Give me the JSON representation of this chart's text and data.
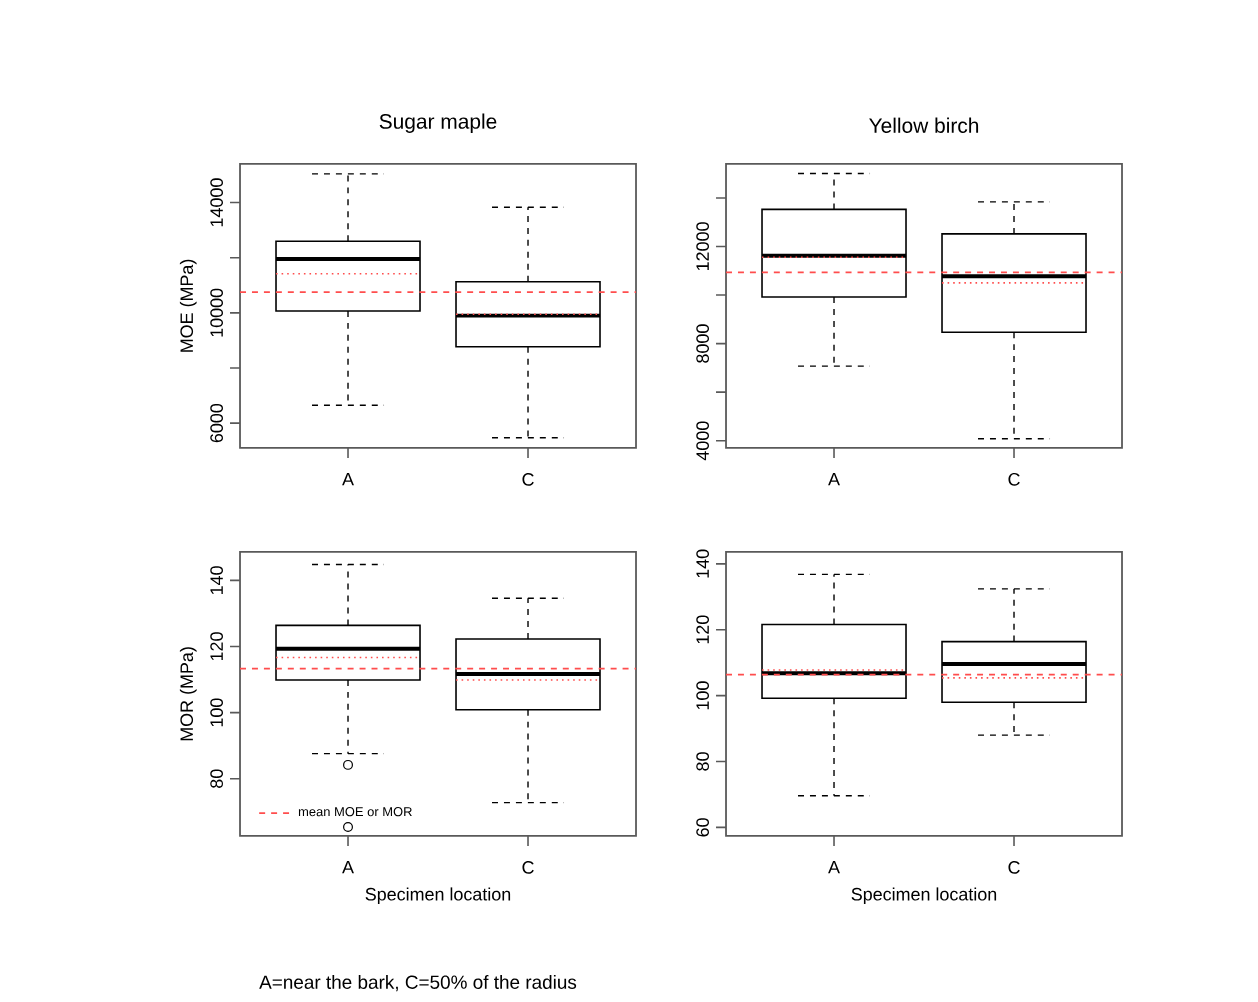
{
  "chart_data": [
    {
      "type": "box",
      "title": "Sugar maple",
      "ylabel": "MOE (MPa)",
      "categories": [
        "A",
        "C"
      ],
      "boxes": [
        {
          "low": 6650,
          "q1": 10070,
          "median": 11950,
          "q3": 12600,
          "high": 15040,
          "mean": 11420
        },
        {
          "low": 5470,
          "q1": 8770,
          "median": 9900,
          "q3": 11130,
          "high": 13830,
          "mean": 9950
        }
      ],
      "ylim": [
        5100,
        15400
      ],
      "yticks": [
        6000,
        {
          "value": 8000,
          "label": null
        },
        10000,
        {
          "value": 12000,
          "label": null
        },
        14000
      ],
      "ref_lines": [
        {
          "axis": "y",
          "value": 10750,
          "color": "#ff4d4d",
          "line_style": "dashed"
        }
      ]
    },
    {
      "type": "box",
      "title": "Yellow birch",
      "categories": [
        "A",
        "C"
      ],
      "boxes": [
        {
          "low": 7070,
          "q1": 9920,
          "median": 11620,
          "q3": 13530,
          "high": 15010,
          "mean": 11560
        },
        {
          "low": 4080,
          "q1": 8470,
          "median": 10770,
          "q3": 12520,
          "high": 13840,
          "mean": 10500
        }
      ],
      "ylim": [
        3700,
        15400
      ],
      "yticks": [
        4000,
        {
          "value": 6000,
          "label": null
        },
        8000,
        {
          "value": 10000,
          "label": null
        },
        12000,
        {
          "value": 14000,
          "label": null
        }
      ],
      "ref_lines": [
        {
          "axis": "y",
          "value": 10930,
          "color": "#ff4d4d",
          "line_style": "dashed"
        }
      ]
    },
    {
      "type": "box",
      "ylabel": "MOR (MPa)",
      "xlabel": "Specimen location",
      "categories": [
        "A",
        "C"
      ],
      "boxes": [
        {
          "low": 87.6,
          "q1": 109.9,
          "median": 119.3,
          "q3": 126.4,
          "high": 144.8,
          "mean": 116.7,
          "outliers": [
            84.2,
            65.4
          ]
        },
        {
          "low": 72.8,
          "q1": 100.9,
          "median": 111.7,
          "q3": 122.3,
          "high": 134.6,
          "mean": 109.9
        }
      ],
      "ylim": [
        62.7,
        148.6
      ],
      "yticks": [
        80,
        100,
        120,
        140
      ],
      "ref_lines": [
        {
          "axis": "y",
          "value": 113.3,
          "label": "mean MOE or MOR",
          "color": "#ff4d4d",
          "line_style": "dashed"
        }
      ],
      "legend": "bottom left",
      "annotations": [
        "A=near the bark, C=50% of the radius"
      ]
    },
    {
      "type": "box",
      "xlabel": "Specimen location",
      "categories": [
        "A",
        "C"
      ],
      "boxes": [
        {
          "low": 69.6,
          "q1": 99.2,
          "median": 106.8,
          "q3": 121.6,
          "high": 136.8,
          "mean": 107.8
        },
        {
          "low": 88.0,
          "q1": 98.0,
          "median": 109.6,
          "q3": 116.4,
          "high": 132.4,
          "mean": 105.4
        }
      ],
      "ylim": [
        57.4,
        143.6
      ],
      "yticks": [
        60,
        80,
        100,
        120,
        140
      ],
      "ref_lines": [
        {
          "axis": "y",
          "value": 106.4,
          "color": "#ff4d4d",
          "line_style": "dashed"
        }
      ]
    }
  ]
}
